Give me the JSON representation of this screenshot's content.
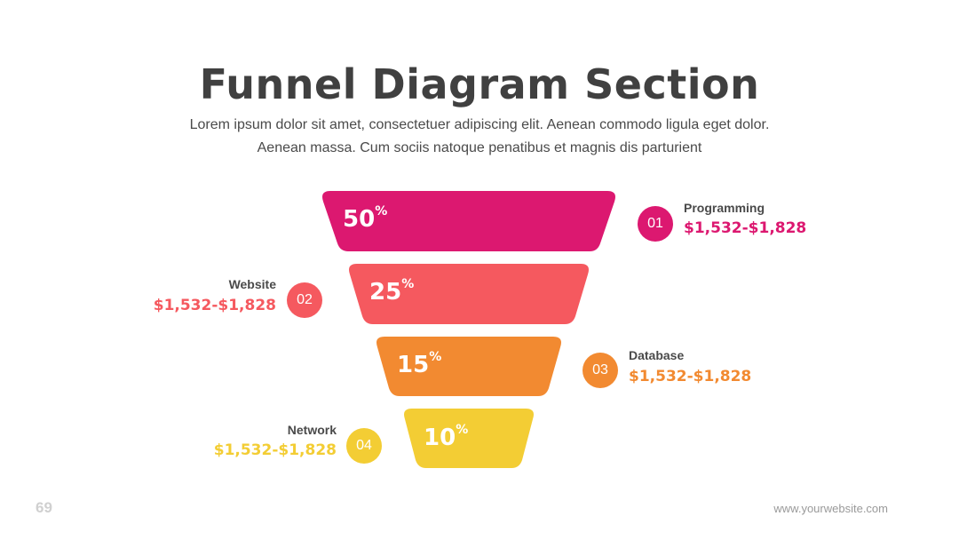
{
  "header": {
    "title": "Funnel Diagram Section",
    "subtitle_line1": "Lorem ipsum dolor sit amet, consectetuer adipiscing elit. Aenean commodo ligula eget dolor.",
    "subtitle_line2": "Aenean massa. Cum sociis natoque penatibus et magnis dis parturient"
  },
  "stages": [
    {
      "percent": "50",
      "unit": "%",
      "number": "01",
      "name": "Programming",
      "value": "$1,532-$1,828",
      "color": "#dc1870"
    },
    {
      "percent": "25",
      "unit": "%",
      "number": "02",
      "name": "Website",
      "value": "$1,532-$1,828",
      "color": "#f5595f"
    },
    {
      "percent": "15",
      "unit": "%",
      "number": "03",
      "name": "Database",
      "value": "$1,532-$1,828",
      "color": "#f28a31"
    },
    {
      "percent": "10",
      "unit": "%",
      "number": "04",
      "name": "Network",
      "value": "$1,532-$1,828",
      "color": "#f3cd34"
    }
  ],
  "footer": {
    "page_number": "69",
    "website": "www.yourwebsite.com"
  }
}
